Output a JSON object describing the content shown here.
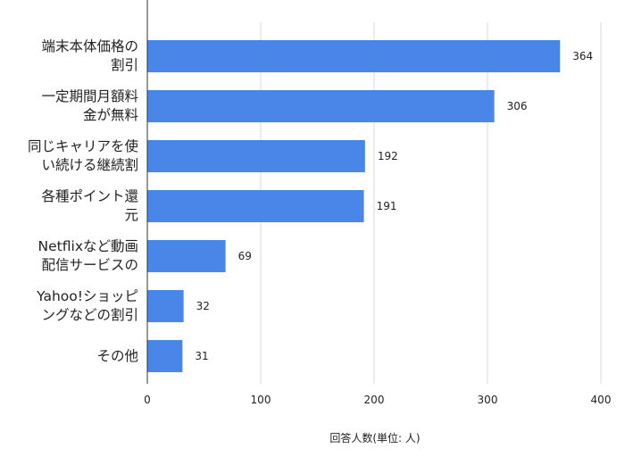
{
  "chart_data": {
    "type": "bar",
    "orientation": "horizontal",
    "categories": [
      "端末本体価格の\n割引",
      "一定期間月額料\n金が無料",
      "同じキャリアを使\nい続ける継続割",
      "各種ポイント還\n元",
      "Netflixなど動画\n配信サービスの",
      "Yahoo!ショッピ\nングなどの割引",
      "その他"
    ],
    "values": [
      364,
      306,
      192,
      191,
      69,
      32,
      31
    ],
    "xlabel": "回答人数(単位: 人)",
    "ylabel": "",
    "xlim": [
      0,
      400
    ],
    "xticks": [
      "0",
      "100",
      "200",
      "300",
      "400"
    ],
    "data_labels": [
      "364",
      "306",
      "192",
      "191",
      "69",
      "32",
      "31"
    ],
    "grid": "vertical",
    "bar_color": "#4a86e8"
  }
}
